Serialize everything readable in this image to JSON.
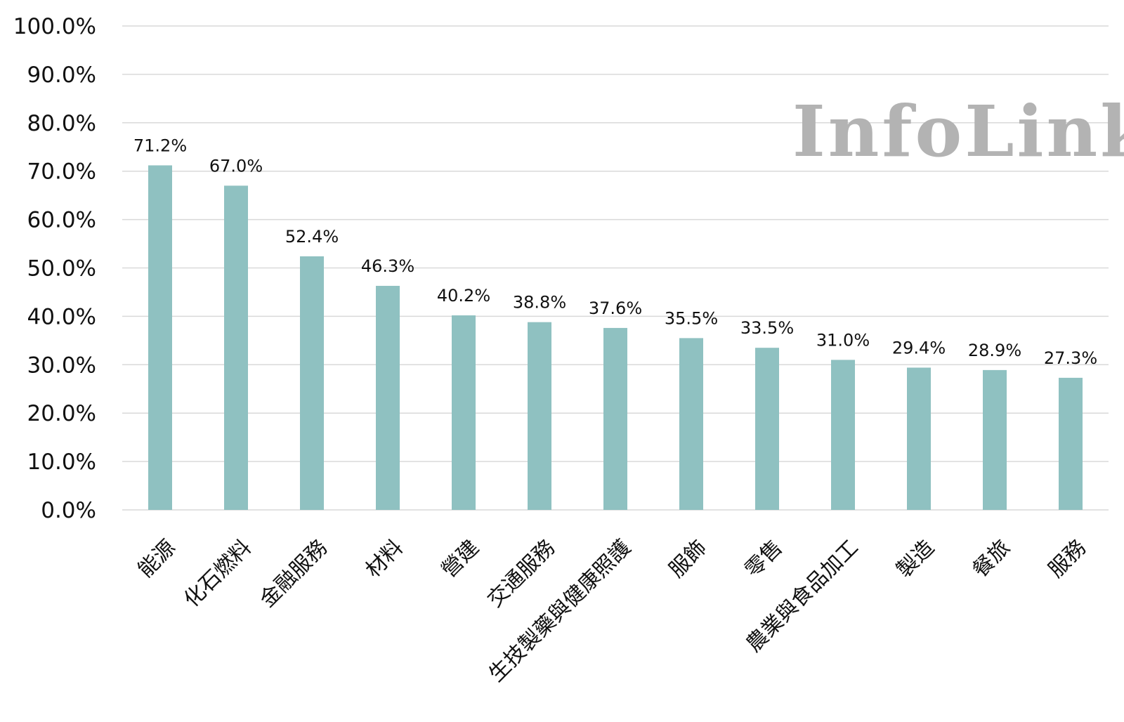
{
  "chart_data": {
    "type": "bar",
    "categories": [
      "能源",
      "化石燃料",
      "金融服務",
      "材料",
      "營建",
      "交通服務",
      "生技製藥與健康照護",
      "服飾",
      "零售",
      "農業與食品加工",
      "製造",
      "餐旅",
      "服務"
    ],
    "values": [
      71.2,
      67.0,
      52.4,
      46.3,
      40.2,
      38.8,
      37.6,
      35.5,
      33.5,
      31.0,
      29.4,
      28.9,
      27.3
    ],
    "data_labels": [
      "71.2%",
      "67.0%",
      "52.4%",
      "46.3%",
      "40.2%",
      "38.8%",
      "37.6%",
      "35.5%",
      "33.5%",
      "31.0%",
      "29.4%",
      "28.9%",
      "27.3%"
    ],
    "y_ticks": [
      "0.0%",
      "10.0%",
      "20.0%",
      "30.0%",
      "40.0%",
      "50.0%",
      "60.0%",
      "70.0%",
      "80.0%",
      "90.0%",
      "100.0%"
    ],
    "ylim": [
      0,
      100
    ],
    "grid": true,
    "legend": "none",
    "title": "",
    "xlabel": "",
    "ylabel": "",
    "watermark": "InfoLink",
    "colors": {
      "bar": "#8fc1c1",
      "grid": "#d9d9d9",
      "watermark": "#b3b3b3"
    }
  }
}
